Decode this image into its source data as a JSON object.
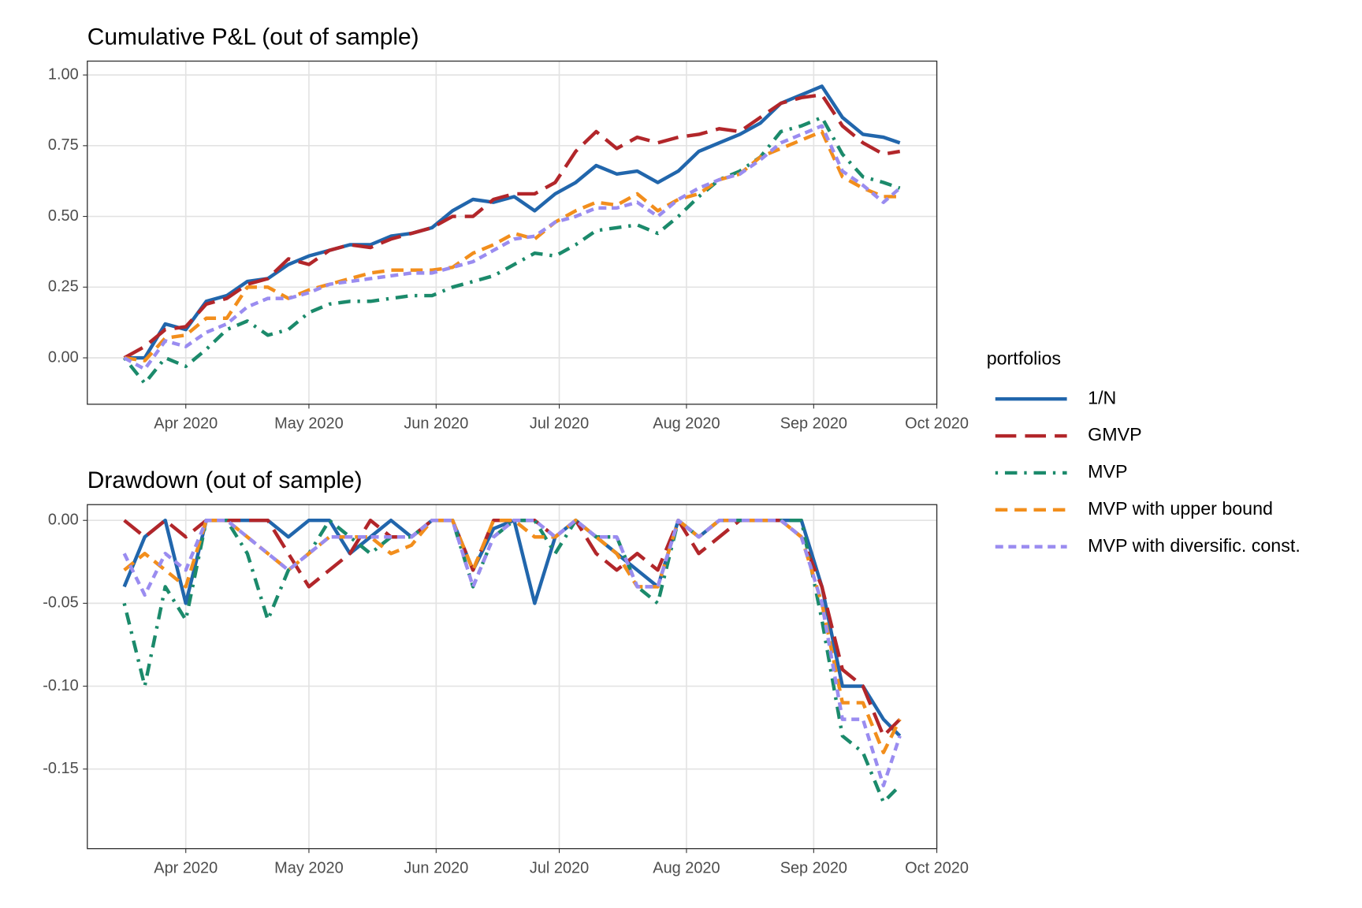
{
  "chart_data": [
    {
      "type": "line",
      "title": "Cumulative P&L (out of sample)",
      "x": [
        77,
        82,
        87,
        92,
        97,
        102,
        107,
        112,
        117,
        122,
        127,
        132,
        137,
        142,
        147,
        152,
        157,
        162,
        167,
        172,
        177,
        182,
        187,
        192,
        197,
        202,
        207,
        212,
        217,
        222,
        227,
        232,
        237,
        242,
        247,
        252,
        257,
        262,
        266
      ],
      "xlim": [
        68,
        275
      ],
      "xticks": [
        {
          "value": 92,
          "label": "Apr 2020"
        },
        {
          "value": 122,
          "label": "May 2020"
        },
        {
          "value": 153,
          "label": "Jun 2020"
        },
        {
          "value": 183,
          "label": "Jul 2020"
        },
        {
          "value": 214,
          "label": "Aug 2020"
        },
        {
          "value": 245,
          "label": "Sep 2020"
        },
        {
          "value": 275,
          "label": "Oct 2020"
        }
      ],
      "ylim": [
        -0.164,
        1.049
      ],
      "yticks": [
        {
          "value": 0,
          "label": "0.00"
        },
        {
          "value": 0.25,
          "label": "0.25"
        },
        {
          "value": 0.5,
          "label": "0.50"
        },
        {
          "value": 0.75,
          "label": "0.75"
        },
        {
          "value": 1,
          "label": "1.00"
        }
      ],
      "grid": true,
      "legend_title": "portfolios",
      "series": [
        {
          "name": "1/N",
          "color": "#2166ac",
          "linetype": "solid",
          "values": [
            0,
            0,
            0.12,
            0.1,
            0.2,
            0.22,
            0.27,
            0.28,
            0.33,
            0.36,
            0.38,
            0.4,
            0.4,
            0.43,
            0.44,
            0.46,
            0.52,
            0.56,
            0.55,
            0.57,
            0.52,
            0.58,
            0.62,
            0.68,
            0.65,
            0.66,
            0.62,
            0.66,
            0.73,
            0.76,
            0.79,
            0.83,
            0.9,
            0.93,
            0.96,
            0.85,
            0.79,
            0.78,
            0.76
          ]
        },
        {
          "name": "GMVP",
          "color": "#b2262a",
          "linetype": "longdash",
          "values": [
            0,
            0.04,
            0.1,
            0.11,
            0.19,
            0.21,
            0.26,
            0.28,
            0.35,
            0.33,
            0.38,
            0.4,
            0.39,
            0.42,
            0.44,
            0.46,
            0.5,
            0.5,
            0.56,
            0.58,
            0.58,
            0.62,
            0.73,
            0.8,
            0.74,
            0.78,
            0.76,
            0.78,
            0.79,
            0.81,
            0.8,
            0.85,
            0.9,
            0.92,
            0.93,
            0.82,
            0.76,
            0.72,
            0.73
          ]
        },
        {
          "name": "MVP",
          "color": "#1b8a6b",
          "linetype": "dotdash",
          "values": [
            0,
            -0.09,
            0,
            -0.03,
            0.03,
            0.1,
            0.13,
            0.08,
            0.1,
            0.16,
            0.19,
            0.2,
            0.2,
            0.21,
            0.22,
            0.22,
            0.25,
            0.27,
            0.29,
            0.33,
            0.37,
            0.36,
            0.4,
            0.45,
            0.46,
            0.47,
            0.44,
            0.5,
            0.57,
            0.63,
            0.66,
            0.71,
            0.8,
            0.82,
            0.85,
            0.72,
            0.64,
            0.62,
            0.6
          ]
        },
        {
          "name": "MVP with upper bound",
          "color": "#f28e1c",
          "linetype": "dashed",
          "values": [
            0,
            -0.01,
            0.07,
            0.08,
            0.14,
            0.14,
            0.25,
            0.25,
            0.21,
            0.24,
            0.26,
            0.28,
            0.3,
            0.31,
            0.31,
            0.31,
            0.32,
            0.37,
            0.4,
            0.44,
            0.42,
            0.48,
            0.52,
            0.55,
            0.54,
            0.58,
            0.52,
            0.56,
            0.58,
            0.63,
            0.65,
            0.71,
            0.74,
            0.77,
            0.8,
            0.64,
            0.6,
            0.57,
            0.57
          ]
        },
        {
          "name": "MVP with diversific. const.",
          "color": "#9a8cf0",
          "linetype": "shortdash",
          "values": [
            0,
            -0.04,
            0.06,
            0.04,
            0.09,
            0.12,
            0.18,
            0.21,
            0.21,
            0.23,
            0.26,
            0.27,
            0.28,
            0.29,
            0.3,
            0.3,
            0.32,
            0.34,
            0.38,
            0.42,
            0.43,
            0.48,
            0.5,
            0.53,
            0.53,
            0.55,
            0.5,
            0.56,
            0.6,
            0.63,
            0.65,
            0.7,
            0.76,
            0.79,
            0.82,
            0.66,
            0.61,
            0.55,
            0.6
          ]
        }
      ]
    },
    {
      "type": "line",
      "title": "Drawdown (out of sample)",
      "x": [
        77,
        82,
        87,
        92,
        97,
        102,
        107,
        112,
        117,
        122,
        127,
        132,
        137,
        142,
        147,
        152,
        157,
        162,
        167,
        172,
        177,
        182,
        187,
        192,
        197,
        202,
        207,
        212,
        217,
        222,
        227,
        232,
        237,
        242,
        247,
        252,
        257,
        262,
        266
      ],
      "xlim": [
        68,
        275
      ],
      "xticks": [
        {
          "value": 92,
          "label": "Apr 2020"
        },
        {
          "value": 122,
          "label": "May 2020"
        },
        {
          "value": 153,
          "label": "Jun 2020"
        },
        {
          "value": 183,
          "label": "Jul 2020"
        },
        {
          "value": 214,
          "label": "Aug 2020"
        },
        {
          "value": 245,
          "label": "Sep 2020"
        },
        {
          "value": 275,
          "label": "Oct 2020"
        }
      ],
      "ylim": [
        -0.198,
        0.0095
      ],
      "yticks": [
        {
          "value": 0,
          "label": "0.00"
        },
        {
          "value": -0.05,
          "label": "-0.05"
        },
        {
          "value": -0.1,
          "label": "-0.10"
        },
        {
          "value": -0.15,
          "label": "-0.15"
        }
      ],
      "grid": true,
      "series": [
        {
          "color": "#2166ac",
          "linetype": "solid",
          "values": [
            -0.04,
            -0.01,
            0,
            -0.05,
            0,
            0,
            0,
            0,
            -0.01,
            0,
            0,
            -0.02,
            -0.01,
            0,
            -0.01,
            0,
            0,
            -0.03,
            -0.005,
            0,
            -0.05,
            -0.01,
            0,
            -0.01,
            -0.02,
            -0.03,
            -0.04,
            0,
            -0.01,
            0,
            0,
            0,
            0,
            0,
            -0.04,
            -0.1,
            -0.1,
            -0.12,
            -0.13
          ]
        },
        {
          "color": "#b2262a",
          "linetype": "longdash",
          "values": [
            0,
            -0.01,
            0,
            -0.01,
            0,
            0,
            0,
            0,
            -0.02,
            -0.04,
            -0.03,
            -0.02,
            0,
            -0.01,
            -0.01,
            0,
            0,
            -0.03,
            0,
            0,
            0,
            -0.01,
            0,
            -0.02,
            -0.03,
            -0.02,
            -0.03,
            0,
            -0.02,
            -0.01,
            0,
            0,
            0,
            -0.01,
            -0.04,
            -0.09,
            -0.1,
            -0.13,
            -0.12
          ]
        },
        {
          "color": "#1b8a6b",
          "linetype": "dotdash",
          "values": [
            -0.05,
            -0.1,
            -0.04,
            -0.06,
            0,
            0,
            -0.02,
            -0.06,
            -0.03,
            -0.02,
            0,
            -0.01,
            -0.02,
            -0.01,
            -0.01,
            0,
            0,
            -0.04,
            -0.01,
            0,
            0,
            -0.02,
            0,
            -0.01,
            -0.01,
            -0.04,
            -0.05,
            0,
            -0.01,
            0,
            0,
            0,
            0,
            0,
            -0.06,
            -0.13,
            -0.14,
            -0.17,
            -0.16
          ]
        },
        {
          "color": "#f28e1c",
          "linetype": "dashed",
          "values": [
            -0.03,
            -0.02,
            -0.03,
            -0.04,
            0,
            0,
            -0.01,
            -0.02,
            -0.03,
            -0.02,
            -0.01,
            -0.01,
            -0.01,
            -0.02,
            -0.015,
            0,
            0,
            -0.03,
            0,
            0,
            -0.01,
            -0.01,
            0,
            -0.01,
            -0.02,
            -0.04,
            -0.04,
            0,
            -0.01,
            0,
            0,
            0,
            0,
            -0.01,
            -0.05,
            -0.11,
            -0.11,
            -0.14,
            -0.12
          ]
        },
        {
          "color": "#9a8cf0",
          "linetype": "shortdash",
          "values": [
            -0.02,
            -0.045,
            -0.02,
            -0.03,
            0,
            0,
            -0.01,
            -0.02,
            -0.03,
            -0.02,
            -0.01,
            -0.01,
            -0.01,
            -0.01,
            -0.01,
            0,
            0,
            -0.04,
            -0.01,
            0,
            0,
            -0.01,
            0,
            -0.01,
            -0.01,
            -0.04,
            -0.04,
            0,
            -0.01,
            0,
            0,
            0,
            0,
            -0.01,
            -0.05,
            -0.12,
            -0.12,
            -0.16,
            -0.13
          ]
        }
      ]
    }
  ]
}
